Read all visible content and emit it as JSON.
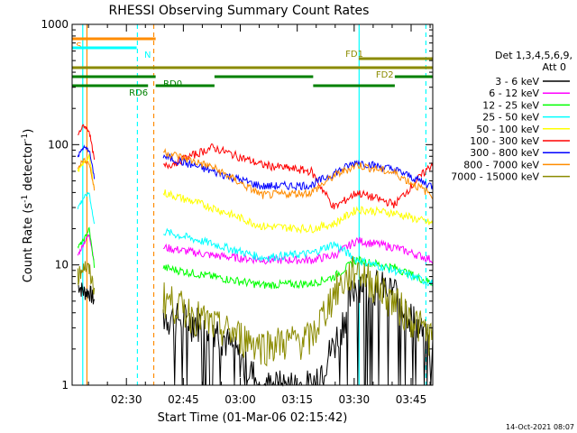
{
  "chart_data": {
    "type": "line",
    "title": "RHESSI Observing Summary Count Rates",
    "xlabel": "Start Time (01-Mar-06 02:15:42)",
    "ylabel_main": "Count Rate (s",
    "ylabel_sup1": "-1",
    "ylabel_mid": " detector",
    "ylabel_sup2": "-1",
    "ylabel_end": ")",
    "yscale": "log",
    "ylim": [
      1,
      1000
    ],
    "xlim_minutes": [
      0,
      95
    ],
    "x_tick_labels": [
      {
        "label": "02:30",
        "t": 14.3
      },
      {
        "label": "02:45",
        "t": 29.3
      },
      {
        "label": "03:00",
        "t": 44.3
      },
      {
        "label": "03:15",
        "t": 59.3
      },
      {
        "label": "03:30",
        "t": 74.3
      },
      {
        "label": "03:45",
        "t": 89.3
      }
    ],
    "y_tick_labels": [
      {
        "label": "1",
        "v": 1
      },
      {
        "label": "10",
        "v": 10
      },
      {
        "label": "100",
        "v": 100
      },
      {
        "label": "1000",
        "v": 1000
      }
    ],
    "legend": {
      "header": "Det 1,3,4,5,6,9,",
      "header2": "Att 0",
      "placement": "right"
    },
    "series": [
      {
        "name": "3 - 6 keV",
        "color": "#000000",
        "gap1": [
          7,
          6,
          6,
          5
        ],
        "day": [
          3.8,
          3.3,
          1.0,
          1.0,
          2.2,
          7.5,
          6.2,
          2.0
        ]
      },
      {
        "name": "6 - 12 keV",
        "color": "#ff00ff",
        "gap1": [
          12,
          15,
          18,
          10
        ],
        "day": [
          14,
          12,
          11,
          11,
          12,
          16,
          14,
          11
        ]
      },
      {
        "name": "12 - 25 keV",
        "color": "#00ff00",
        "gap1": [
          14,
          16,
          20,
          9
        ],
        "day": [
          9.5,
          8.0,
          6.8,
          7.0,
          8.0,
          11,
          9.5,
          7.0
        ]
      },
      {
        "name": "25 - 50 keV",
        "color": "#00ffff",
        "gap1": [
          30,
          36,
          40,
          20
        ],
        "day": [
          19,
          15,
          11.5,
          12.5,
          15,
          11,
          9.0,
          7.0
        ]
      },
      {
        "name": "50 - 100 keV",
        "color": "#ffff00",
        "gap1": [
          60,
          70,
          80,
          40
        ],
        "day": [
          40,
          30,
          21,
          20,
          22,
          29,
          27,
          22
        ]
      },
      {
        "name": "100 - 300 keV",
        "color": "#ff0000",
        "gap1": [
          120,
          145,
          130,
          70
        ],
        "day": [
          65,
          95,
          68,
          60,
          30,
          40,
          32,
          70
        ]
      },
      {
        "name": "300 - 800 keV",
        "color": "#0000ff",
        "gap1": [
          80,
          95,
          90,
          50
        ],
        "day": [
          80,
          60,
          45,
          46,
          58,
          72,
          62,
          45
        ]
      },
      {
        "name": "800 - 7000 keV",
        "color": "#ff8c00",
        "gap1": [
          65,
          75,
          70,
          40
        ],
        "day": [
          88,
          65,
          38,
          40,
          55,
          68,
          58,
          38
        ]
      },
      {
        "name": "7000 - 15000 keV",
        "color": "#8b8b00",
        "gap1": [
          8,
          10,
          9,
          6
        ],
        "day": [
          5.5,
          3.2,
          2.2,
          2.5,
          6.0,
          9.5,
          5.0,
          2.5
        ]
      }
    ],
    "flags": [
      {
        "label": "S",
        "color": "#ff8c00",
        "y_frac": 0.04,
        "segments": [
          [
            0,
            22
          ]
        ]
      },
      {
        "label": "N",
        "color": "#00ffff",
        "y_frac": 0.065,
        "segments": [
          [
            0,
            17
          ]
        ]
      },
      {
        "label": "FD1",
        "color": "#8b8b00",
        "y_frac": 0.095,
        "segments": [
          [
            75.5,
            95
          ]
        ]
      },
      {
        "label": "FD2",
        "color": "#8b8b00",
        "y_frac": 0.12,
        "segments": [
          [
            0,
            95
          ]
        ]
      },
      {
        "label": "RD0",
        "color": "#008000",
        "y_frac": 0.145,
        "segments": [
          [
            0,
            22
          ],
          [
            37.5,
            63.5
          ],
          [
            85,
            95
          ]
        ]
      },
      {
        "label": "RD6",
        "color": "#008000",
        "y_frac": 0.17,
        "segments": [
          [
            0,
            20
          ],
          [
            22,
            37.5
          ],
          [
            63.5,
            85
          ]
        ]
      }
    ],
    "vlines": [
      {
        "t": 2.8,
        "color": "#00ffff",
        "dashed": false
      },
      {
        "t": 17.2,
        "color": "#00ffff",
        "dashed": true
      },
      {
        "t": 21.5,
        "color": "#ff8c00",
        "dashed": true
      },
      {
        "t": 75.6,
        "color": "#00ffff",
        "dashed": false
      },
      {
        "t": 93.2,
        "color": "#00ffff",
        "dashed": true
      },
      {
        "t": 3.9,
        "color": "#ff8c00",
        "dashed": false
      }
    ],
    "timestamp": "14-Oct-2021 08:07"
  }
}
